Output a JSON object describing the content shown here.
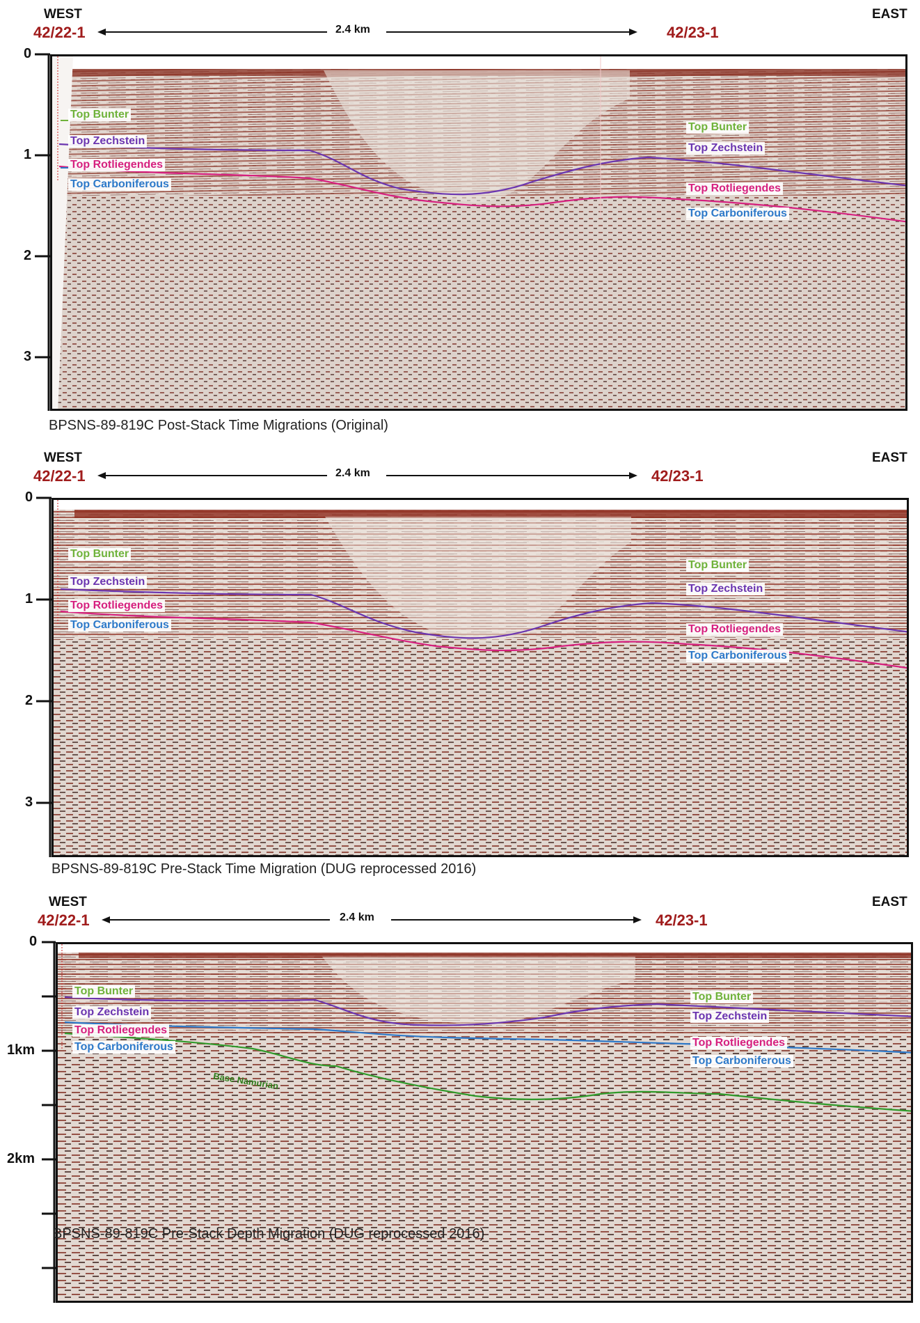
{
  "panels": [
    {
      "west": "WEST",
      "east": "EAST",
      "well_left": "42/22-1",
      "well_right": "42/23-1",
      "scale": "2.4 km",
      "caption": "BPSNS-89-819C Post-Stack Time Migrations (Original)",
      "axis_ticks": [
        "0",
        "1",
        "2",
        "3"
      ],
      "labels_left": [
        "Top Bunter",
        "Top Zechstein",
        "Top Rotliegendes",
        "Top Carboniferous"
      ],
      "labels_right": [
        "Top Bunter",
        "Top Zechstein",
        "Top Rotliegendes",
        "Top Carboniferous"
      ]
    },
    {
      "west": "WEST",
      "east": "EAST",
      "well_left": "42/22-1",
      "well_right": "42/23-1",
      "scale": "2.4 km",
      "caption": "BPSNS-89-819C Pre-Stack Time Migration (DUG reprocessed 2016)",
      "axis_ticks": [
        "0",
        "1",
        "2",
        "3"
      ],
      "labels_left": [
        "Top Bunter",
        "Top Zechstein",
        "Top Rotliegendes",
        "Top Carboniferous"
      ],
      "labels_right": [
        "Top Bunter",
        "Top Zechstein",
        "Top Rotliegendes",
        "Top Carboniferous"
      ]
    },
    {
      "west": "WEST",
      "east": "EAST",
      "well_left": "42/22-1",
      "well_right": "42/23-1",
      "scale": "2.4 km",
      "caption": "BPSNS-89-819C Pre-Stack Depth Migration (DUG reprocessed 2016)",
      "axis_ticks": [
        "0",
        "1km",
        "2km"
      ],
      "labels_left": [
        "Top Bunter",
        "Top Zechstein",
        "Top Rotliegendes",
        "Top Carboniferous"
      ],
      "labels_right": [
        "Top Bunter",
        "Top Zechstein",
        "Top Rotliegendes",
        "Top Carboniferous"
      ],
      "extra_label": "Base Namurian"
    }
  ],
  "colors": {
    "bunter": "#6fb23a",
    "zechstein": "#6b35b0",
    "rotliegendes": "#d6207f",
    "carboniferous": "#2d79c9",
    "namurian": "#2f9a2a",
    "well": "#a01c1c"
  }
}
